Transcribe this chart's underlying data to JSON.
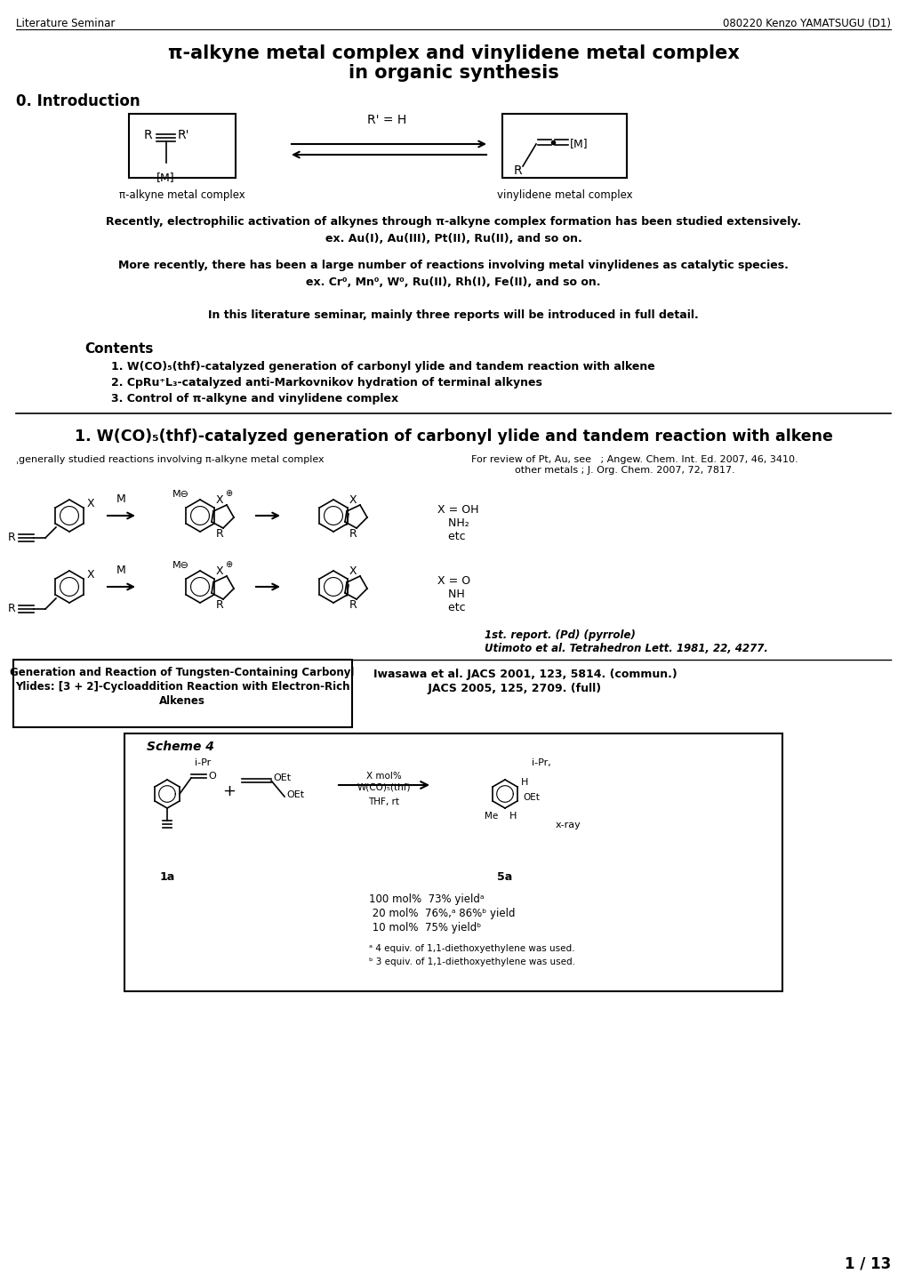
{
  "header_left": "Literature Seminar",
  "header_right": "080220 Kenzo YAMATSUGU (D1)",
  "title_line1": "π-alkyne metal complex and vinylidene metal complex",
  "title_line2": "in organic synthesis",
  "section0": "0. Introduction",
  "label_pi_alkyne": "π-alkyne metal complex",
  "label_vinylidene": "vinylidene metal complex",
  "arrow_label": "R' = H",
  "text1": "Recently, electrophilic activation of alkynes through π-alkyne complex formation has been studied extensively.",
  "text2": "ex. Au(I), Au(III), Pt(II), Ru(II), and so on.",
  "text3": "More recently, there has been a large number of reactions involving metal vinylidenes as catalytic species.",
  "text4": "ex. Cr⁰, Mn⁰, W⁰, Ru(II), Rh(I), Fe(II), and so on.",
  "text5": "In this literature seminar, mainly three reports will be introduced in full detail.",
  "contents_title": "Contents",
  "contents1": "1. W(CO)₅(thf)-catalyzed generation of carbonyl ylide and tandem reaction with alkene",
  "contents2": "2. CpRu⁺L₃-catalyzed anti-Markovnikov hydration of terminal alkynes",
  "contents3": "3. Control of π-alkyne and vinylidene complex",
  "section1_title": "1. W(CO)₅(thf)-catalyzed generation of carbonyl ylide and tandem reaction with alkene",
  "sub_left": "ˌgenerally studied reactions involving π-alkyne metal complex",
  "ref_review1": "For review of Pt, Au, see   ; Angew. Chem. Int. Ed. 2007, 46, 3410.",
  "ref_review2": "              other metals ; J. Org. Chem. 2007, 72, 7817.",
  "xeq_oh1": "X = OH",
  "xeq_oh2": "   NH₂",
  "xeq_oh3": "   etc",
  "xeq_o1": "X = O",
  "xeq_o2": "   NH",
  "xeq_o3": "   etc",
  "ref_pd1": "1st. report. (Pd) (pyrrole)",
  "ref_pd2": "Utimoto et al. Tetrahedron Lett. 1981, 22, 4277.",
  "box_text1": "Generation and Reaction of Tungsten-Containing Carbonyl",
  "box_text2": "Ylides: [3 + 2]-Cycloaddition Reaction with Electron-Rich",
  "box_text3": "Alkenes",
  "ref_iwasawa1": "Iwasawa et al. JACS 2001, 123, 5814. (commun.)",
  "ref_iwasawa2": "              JACS 2005, 125, 2709. (full)",
  "scheme_label": "Scheme 4",
  "yield_line1": "100 mol%  73% yieldᵃ",
  "yield_line2": " 20 mol%  76%,ᵃ 86%ᵇ yield",
  "yield_line3": " 10 mol%  75% yieldᵇ",
  "footnote_a": "ᵃ 4 equiv. of 1,1-diethoxyethylene was used.",
  "footnote_b": "ᵇ 3 equiv. of 1,1-diethoxyethylene was used.",
  "page": "1 / 13",
  "bg_color": "#ffffff"
}
